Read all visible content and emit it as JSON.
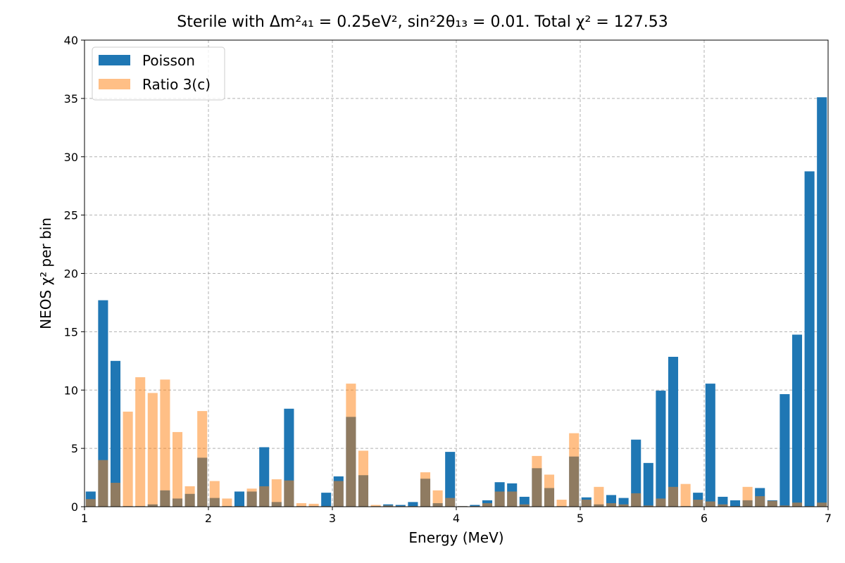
{
  "chart_data": {
    "type": "bar",
    "title_prefix": "Sterile with ",
    "title_math_1": "Δm²₄₁ = 0.25eV²",
    "title_sep": ", ",
    "title_math_2": "sin²2θ₁₃ = 0.01",
    "title_suffix": ". Total ",
    "title_math_3": "χ² = 127.53",
    "xlabel": "Energy (MeV)",
    "ylabel": "NEOS χ² per bin",
    "xlim": [
      1,
      7
    ],
    "ylim": [
      0,
      40
    ],
    "xticks": [
      1,
      2,
      3,
      4,
      5,
      6,
      7
    ],
    "yticks": [
      0,
      5,
      10,
      15,
      20,
      25,
      30,
      35,
      40
    ],
    "bar_width": 0.08,
    "grid": true,
    "legend_position": "top-left",
    "x": [
      1.05,
      1.15,
      1.25,
      1.35,
      1.45,
      1.55,
      1.65,
      1.75,
      1.85,
      1.95,
      2.05,
      2.15,
      2.25,
      2.35,
      2.45,
      2.55,
      2.65,
      2.75,
      2.85,
      2.95,
      3.05,
      3.15,
      3.25,
      3.35,
      3.45,
      3.55,
      3.65,
      3.75,
      3.85,
      3.95,
      4.05,
      4.15,
      4.25,
      4.35,
      4.45,
      4.55,
      4.65,
      4.75,
      4.85,
      4.95,
      5.05,
      5.15,
      5.25,
      5.35,
      5.45,
      5.55,
      5.65,
      5.75,
      5.85,
      5.95,
      6.05,
      6.15,
      6.25,
      6.35,
      6.45,
      6.55,
      6.65,
      6.75,
      6.85,
      6.95
    ],
    "series": [
      {
        "name": "Poisson",
        "color": "#1f77b4",
        "opacity": 1.0,
        "values": [
          1.3,
          17.7,
          12.5,
          0.05,
          0.05,
          0.2,
          1.4,
          0.7,
          1.1,
          4.2,
          0.75,
          0.05,
          1.3,
          1.3,
          5.1,
          0.4,
          8.4,
          0.05,
          0.05,
          1.2,
          2.6,
          7.7,
          2.7,
          0.05,
          0.2,
          0.15,
          0.4,
          2.4,
          0.3,
          4.7,
          0.05,
          0.15,
          0.55,
          2.1,
          2.0,
          0.85,
          3.3,
          1.6,
          0.05,
          4.3,
          0.8,
          0.2,
          1.0,
          0.75,
          5.75,
          3.75,
          9.95,
          12.85,
          0.05,
          1.2,
          10.55,
          0.85,
          0.55,
          0.55,
          1.6,
          0.55,
          9.65,
          14.75,
          28.75,
          35.1
        ]
      },
      {
        "name": "Ratio 3(c)",
        "color": "#ff7f0e",
        "opacity": 0.5,
        "values": [
          0.65,
          4.0,
          2.05,
          8.15,
          11.1,
          9.75,
          10.9,
          6.4,
          1.75,
          8.2,
          2.2,
          0.7,
          0.05,
          1.55,
          1.75,
          2.35,
          2.25,
          0.3,
          0.25,
          0.05,
          2.2,
          10.55,
          4.8,
          0.15,
          0.1,
          0.05,
          0.05,
          2.95,
          1.4,
          0.75,
          0.05,
          0.05,
          0.3,
          1.3,
          1.3,
          0.2,
          4.35,
          2.75,
          0.6,
          6.3,
          0.6,
          1.7,
          0.3,
          0.2,
          1.15,
          0.1,
          0.7,
          1.7,
          1.95,
          0.6,
          0.45,
          0.2,
          0.05,
          1.7,
          0.9,
          0.5,
          0.1,
          0.35,
          0.05,
          0.35
        ]
      }
    ]
  }
}
